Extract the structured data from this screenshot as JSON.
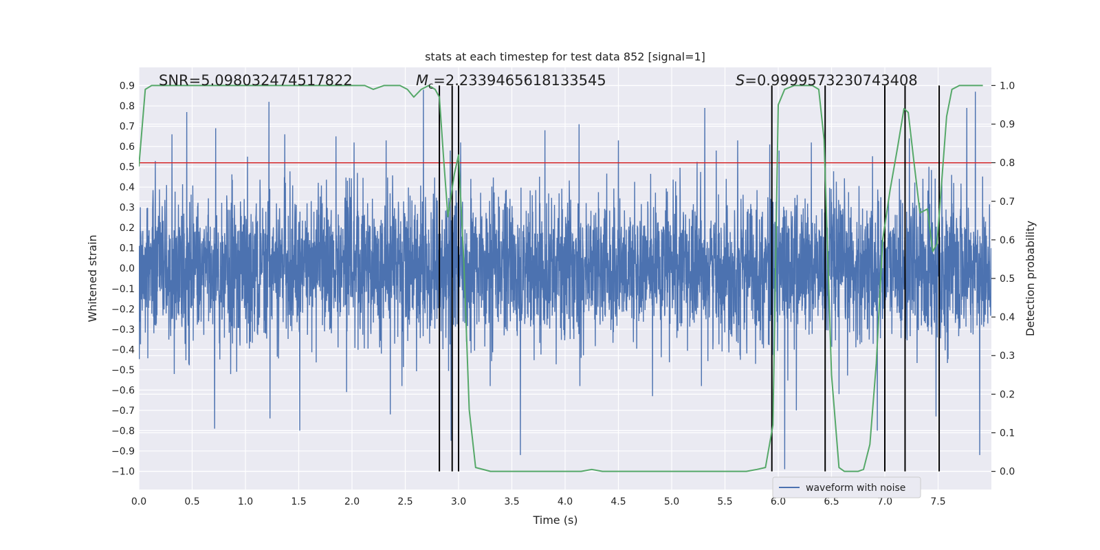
{
  "chart_data": {
    "type": "line",
    "title": "stats at each timestep for test data 852 [signal=1]",
    "xlabel": "Time (s)",
    "ylabel": "Whitened strain",
    "y2label": "Detection probability",
    "xlim": [
      0.0,
      8.0
    ],
    "ylim": [
      -1.09,
      0.99
    ],
    "y2lim": [
      -0.047,
      1.047
    ],
    "xticks": [
      "0.0",
      "0.5",
      "1.0",
      "1.5",
      "2.0",
      "2.5",
      "3.0",
      "3.5",
      "4.0",
      "4.5",
      "5.0",
      "5.5",
      "6.0",
      "6.5",
      "7.0",
      "7.5"
    ],
    "yticks": [
      "−1.0",
      "−0.9",
      "−0.8",
      "−0.7",
      "−0.6",
      "−0.5",
      "−0.4",
      "−0.3",
      "−0.2",
      "−0.1",
      "0.0",
      "0.1",
      "0.2",
      "0.3",
      "0.4",
      "0.5",
      "0.6",
      "0.7",
      "0.8",
      "0.9"
    ],
    "y2ticks": [
      "0.0",
      "0.1",
      "0.2",
      "0.3",
      "0.4",
      "0.5",
      "0.6",
      "0.7",
      "0.8",
      "0.9",
      "1.0"
    ],
    "grid": true,
    "legend_placement": "lower-right",
    "annotations": {
      "snr": "SNR=5.098032474517822",
      "mc_symbol": "M",
      "mc_sub": "c",
      "mc_value": "=2.2339465618133545",
      "s_symbol": "S",
      "s_value": "=0.9999573230743408"
    },
    "series": [
      {
        "name": "waveform with noise",
        "color": "#4c72b0",
        "axis": "left",
        "sampling": "dense noise, 4096 samples over 0-8 s",
        "typical_amplitude": 0.32,
        "spikes": [
          [
            0.31,
            0.66
          ],
          [
            0.45,
            0.77
          ],
          [
            0.71,
            -0.79
          ],
          [
            0.72,
            0.69
          ],
          [
            1.02,
            0.55
          ],
          [
            1.22,
            0.82
          ],
          [
            1.23,
            -0.74
          ],
          [
            1.37,
            0.66
          ],
          [
            1.51,
            -0.8
          ],
          [
            1.85,
            0.65
          ],
          [
            1.95,
            -0.61
          ],
          [
            2.02,
            0.62
          ],
          [
            2.32,
            0.63
          ],
          [
            2.36,
            -0.72
          ],
          [
            2.67,
            0.88
          ],
          [
            2.93,
            -0.85
          ],
          [
            3.02,
            0.62
          ],
          [
            3.58,
            -0.92
          ],
          [
            3.81,
            0.68
          ],
          [
            4.13,
            0.71
          ],
          [
            4.5,
            0.63
          ],
          [
            4.82,
            -0.63
          ],
          [
            5.31,
            0.79
          ],
          [
            5.62,
            0.63
          ],
          [
            5.92,
            0.61
          ],
          [
            6.06,
            -0.99
          ],
          [
            6.17,
            -0.7
          ],
          [
            6.31,
            0.62
          ],
          [
            6.57,
            -0.62
          ],
          [
            6.93,
            -0.8
          ],
          [
            7.23,
            0.64
          ],
          [
            7.48,
            -0.73
          ],
          [
            7.77,
            0.79
          ],
          [
            7.85,
            0.87
          ],
          [
            7.89,
            -0.92
          ]
        ]
      },
      {
        "name": "",
        "color": "#55a868",
        "axis": "right",
        "x": [
          0.0,
          0.06,
          0.12,
          0.2,
          0.5,
          1.0,
          1.5,
          2.0,
          2.12,
          2.2,
          2.3,
          2.45,
          2.52,
          2.58,
          2.65,
          2.72,
          2.78,
          2.82,
          2.86,
          2.9,
          2.96,
          3.0,
          3.05,
          3.1,
          3.16,
          3.3,
          3.5,
          3.6,
          3.8,
          4.0,
          4.15,
          4.25,
          4.35,
          4.5,
          5.0,
          5.5,
          5.7,
          5.8,
          5.88,
          5.95,
          6.0,
          6.06,
          6.15,
          6.25,
          6.32,
          6.38,
          6.43,
          6.5,
          6.57,
          6.62,
          6.68,
          6.75,
          6.8,
          6.86,
          6.92,
          6.98,
          7.05,
          7.12,
          7.18,
          7.22,
          7.27,
          7.33,
          7.4,
          7.45,
          7.49,
          7.52,
          7.58,
          7.63,
          7.7,
          7.8,
          7.92
        ],
        "y": [
          0.79,
          0.99,
          1.0,
          1.0,
          1.0,
          1.0,
          1.0,
          1.0,
          1.0,
          0.99,
          1.0,
          1.0,
          0.99,
          0.97,
          0.99,
          1.0,
          0.99,
          0.97,
          0.81,
          0.66,
          0.77,
          0.82,
          0.54,
          0.16,
          0.01,
          0.0,
          0.0,
          0.0,
          0.0,
          0.0,
          0.0,
          0.005,
          0.0,
          0.0,
          0.0,
          0.0,
          0.0,
          0.005,
          0.01,
          0.12,
          0.95,
          0.99,
          1.0,
          1.0,
          1.0,
          0.99,
          0.86,
          0.25,
          0.01,
          0.0,
          0.0,
          0.0,
          0.005,
          0.07,
          0.28,
          0.6,
          0.73,
          0.84,
          0.94,
          0.93,
          0.81,
          0.67,
          0.68,
          0.57,
          0.59,
          0.7,
          0.92,
          0.99,
          1.0,
          1.0,
          1.0
        ]
      }
    ],
    "hlines": [
      {
        "axis": "left",
        "y": 0.52,
        "color": "#d62728"
      }
    ],
    "vlines": [
      2.82,
      2.94,
      3.0,
      5.94,
      6.44,
      7.0,
      7.19,
      7.51
    ]
  },
  "legend": {
    "entries": [
      {
        "label": "waveform with noise",
        "color": "#4c72b0"
      }
    ]
  }
}
